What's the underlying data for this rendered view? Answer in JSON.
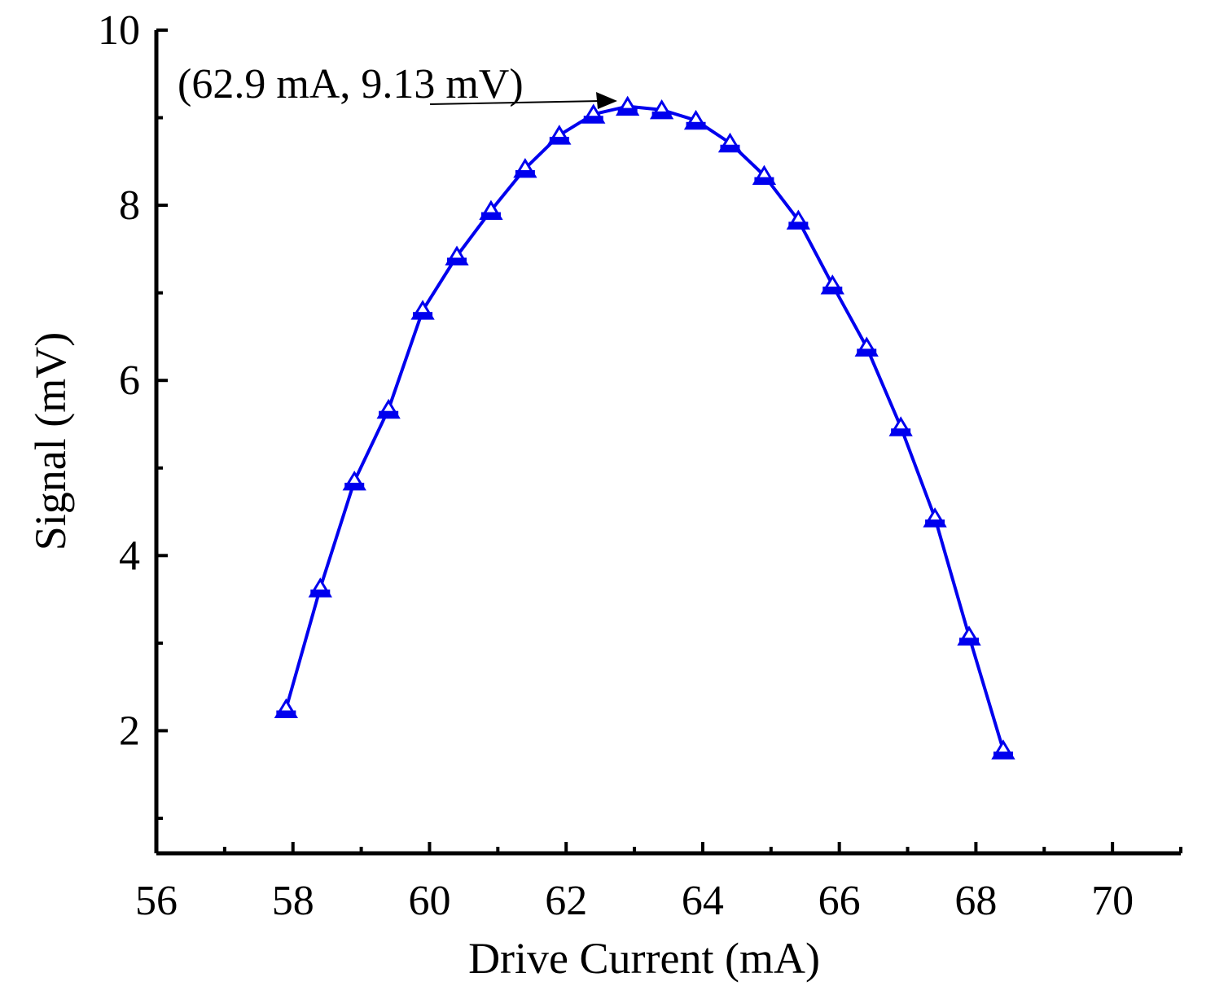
{
  "chart_data": {
    "type": "line",
    "title": "",
    "xlabel": "Drive Current (mA)",
    "ylabel": "Signal (mV)",
    "xlim": [
      56,
      71
    ],
    "ylim": [
      0.6,
      10
    ],
    "x_ticks": [
      56,
      58,
      60,
      62,
      64,
      66,
      68,
      70
    ],
    "x_tick_labels": [
      "56",
      "58",
      "60",
      "62",
      "64",
      "66",
      "68",
      "70"
    ],
    "x_minor_ticks": [
      57,
      59,
      61,
      63,
      65,
      67,
      69,
      71
    ],
    "y_ticks": [
      2,
      4,
      6,
      8,
      10
    ],
    "y_tick_labels": [
      "2",
      "4",
      "6",
      "8",
      "10"
    ],
    "y_minor_ticks": [
      1,
      3,
      5,
      7,
      9
    ],
    "grid": false,
    "legend": "none",
    "series": [
      {
        "color": "#0000ee",
        "marker": "triangle",
        "x": [
          57.9,
          58.4,
          58.9,
          59.4,
          59.9,
          60.4,
          60.9,
          61.4,
          61.9,
          62.4,
          62.9,
          63.4,
          63.9,
          64.4,
          64.9,
          65.4,
          65.9,
          66.4,
          66.9,
          67.4,
          67.9,
          68.4
        ],
        "y": [
          2.25,
          3.63,
          4.85,
          5.67,
          6.8,
          7.42,
          7.94,
          8.42,
          8.8,
          9.04,
          9.13,
          9.09,
          8.97,
          8.71,
          8.34,
          7.83,
          7.09,
          6.38,
          5.47,
          4.43,
          3.08,
          1.78
        ]
      }
    ],
    "annotations": [
      {
        "text": "(62.9 mA, 9.13 mV)",
        "x": 62.9,
        "y": 9.13
      }
    ]
  }
}
